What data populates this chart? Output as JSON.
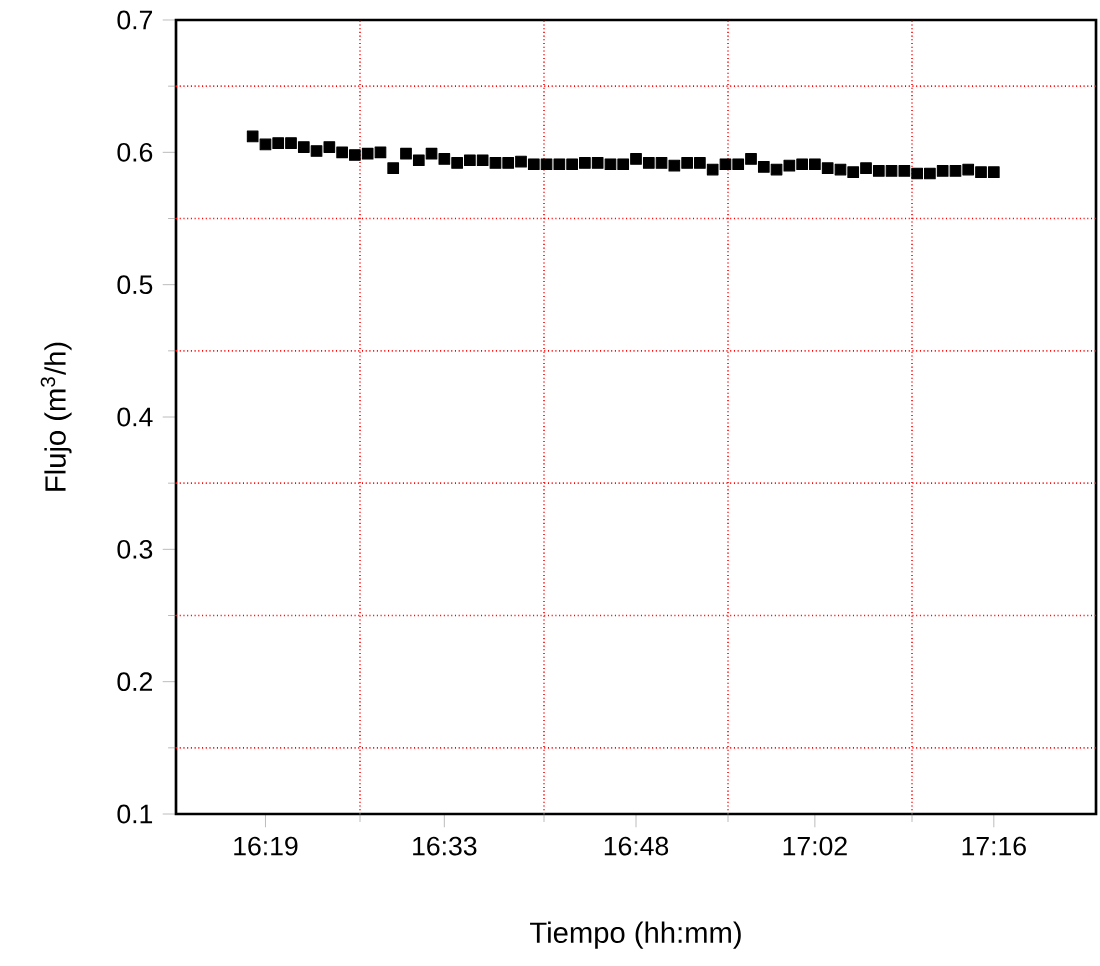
{
  "chart_data": {
    "type": "scatter",
    "xlabel": "Tiempo (hh:mm)",
    "ylabel": "Flujo (m$^{3}$/h)",
    "xlim": [
      16.2,
      17.4
    ],
    "ylim": [
      0.1,
      0.7
    ],
    "xticks": [
      {
        "value": 16.3167,
        "label": "16:19"
      },
      {
        "value": 16.44,
        "label": null
      },
      {
        "value": 16.55,
        "label": "16:33"
      },
      {
        "value": 16.68,
        "label": null
      },
      {
        "value": 16.8,
        "label": "16:48"
      },
      {
        "value": 16.92,
        "label": null
      },
      {
        "value": 17.0333,
        "label": "17:02"
      },
      {
        "value": 17.16,
        "label": null
      },
      {
        "value": 17.2667,
        "label": "17:16"
      }
    ],
    "yticks": [
      0.1,
      {
        "value": 0.15,
        "label": null
      },
      0.2,
      {
        "value": 0.25,
        "label": null
      },
      0.3,
      {
        "value": 0.35,
        "label": null
      },
      0.4,
      {
        "value": 0.45,
        "label": null
      },
      0.5,
      {
        "value": 0.55,
        "label": null
      },
      0.6,
      {
        "value": 0.65,
        "label": null
      },
      0.7
    ],
    "grid": true,
    "marker": "square",
    "x": [
      16.3,
      16.3167,
      16.3333,
      16.35,
      16.3667,
      16.3833,
      16.4,
      16.4167,
      16.4333,
      16.45,
      16.4667,
      16.4833,
      16.5,
      16.5167,
      16.5333,
      16.55,
      16.5667,
      16.5833,
      16.6,
      16.6167,
      16.6333,
      16.65,
      16.6667,
      16.6833,
      16.7,
      16.7167,
      16.7333,
      16.75,
      16.7667,
      16.7833,
      16.8,
      16.8167,
      16.8333,
      16.85,
      16.8667,
      16.8833,
      16.9,
      16.9167,
      16.9333,
      16.95,
      16.9667,
      16.9833,
      17.0,
      17.0167,
      17.0333,
      17.05,
      17.0667,
      17.0833,
      17.1,
      17.1167,
      17.1333,
      17.15,
      17.1667,
      17.1833,
      17.2,
      17.2167,
      17.2333,
      17.25,
      17.2667
    ],
    "series": [
      {
        "color": "#000000",
        "values": [
          0.612,
          0.606,
          0.607,
          0.607,
          0.604,
          0.601,
          0.604,
          0.6,
          0.598,
          0.599,
          0.6,
          0.588,
          0.599,
          0.594,
          0.599,
          0.595,
          0.592,
          0.594,
          0.594,
          0.592,
          0.592,
          0.593,
          0.591,
          0.591,
          0.591,
          0.591,
          0.592,
          0.592,
          0.591,
          0.591,
          0.595,
          0.592,
          0.592,
          0.59,
          0.592,
          0.592,
          0.587,
          0.591,
          0.591,
          0.595,
          0.589,
          0.587,
          0.59,
          0.591,
          0.591,
          0.588,
          0.587,
          0.585,
          0.588,
          0.586,
          0.586,
          0.586,
          0.584,
          0.584,
          0.586,
          0.586,
          0.587,
          0.585,
          0.585
        ]
      }
    ]
  }
}
